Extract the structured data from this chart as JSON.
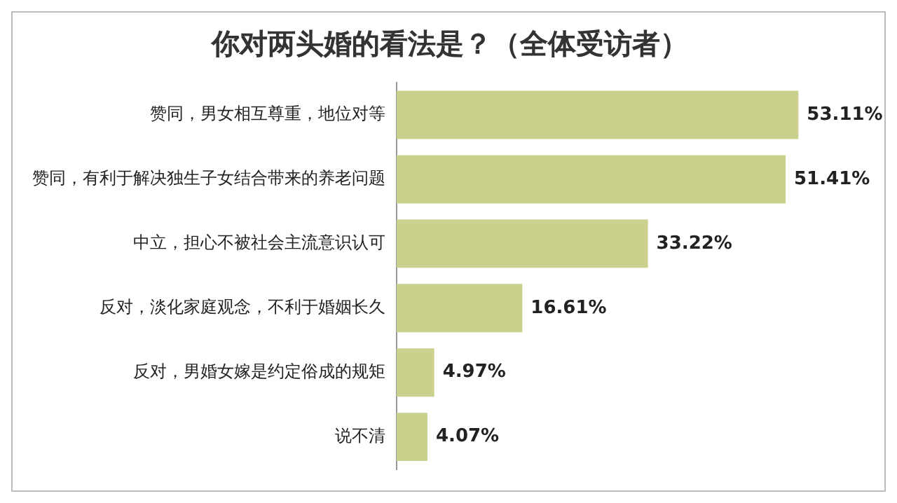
{
  "chart_data": {
    "type": "bar",
    "orientation": "horizontal",
    "title": "你对两头婚的看法是？（全体受访者）",
    "categories": [
      "赞同，男女相互尊重，地位对等",
      "赞同，有利于解决独生子女结合带来的养老问题",
      "中立，担心不被社会主流意识认可",
      "反对，淡化家庭观念，不利于婚姻长久",
      "反对，男婚女嫁是约定俗成的规矩",
      "说不清"
    ],
    "values": [
      53.11,
      51.41,
      33.22,
      16.61,
      4.97,
      4.07
    ],
    "value_labels": [
      "53.11%",
      "51.41%",
      "33.22%",
      "16.61%",
      "4.97%",
      "4.07%"
    ],
    "color": "#cbd08c",
    "legend": false
  }
}
